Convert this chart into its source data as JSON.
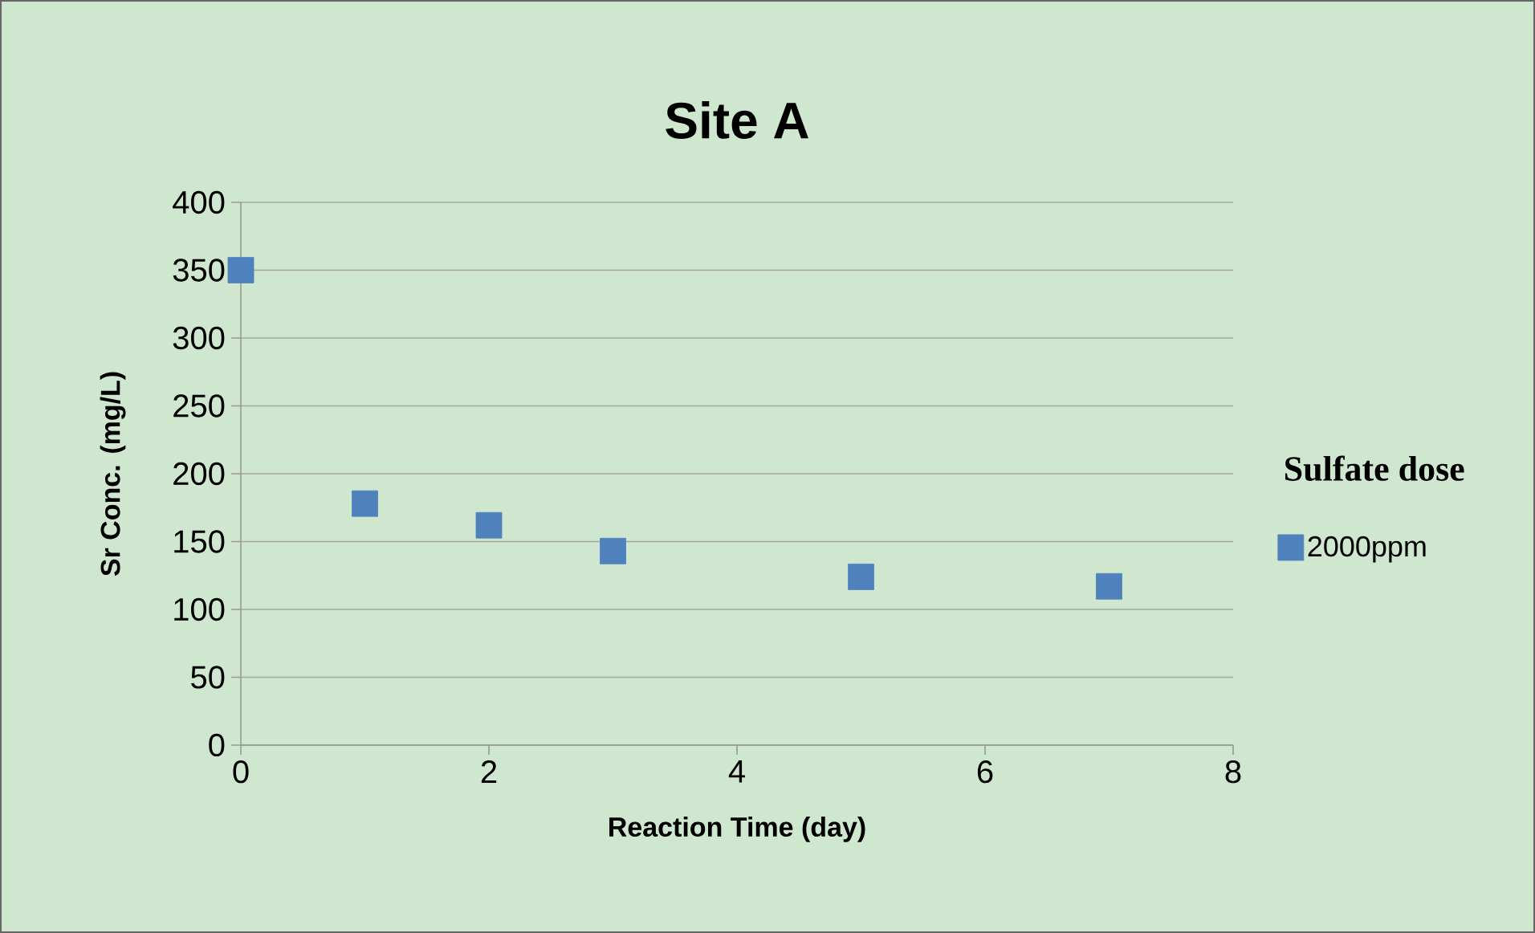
{
  "chart_data": {
    "type": "scatter",
    "title": "Site A",
    "xlabel": "Reaction Time  (day)",
    "ylabel": "Sr Conc. (mg/L)",
    "legend_title": "Sulfate dose",
    "x": [
      0,
      1,
      2,
      3,
      5,
      7
    ],
    "series": [
      {
        "name": "2000ppm",
        "color": "#4f81bd",
        "values": [
          350,
          178,
          162,
          143,
          124,
          117
        ]
      }
    ],
    "xlim": [
      0,
      8
    ],
    "xticks": [
      0,
      2,
      4,
      6,
      8
    ],
    "ylim": [
      0,
      400
    ],
    "yticks": [
      0,
      50,
      100,
      150,
      200,
      250,
      300,
      350,
      400
    ],
    "grid": "y",
    "legend": "right",
    "marker": "square"
  }
}
